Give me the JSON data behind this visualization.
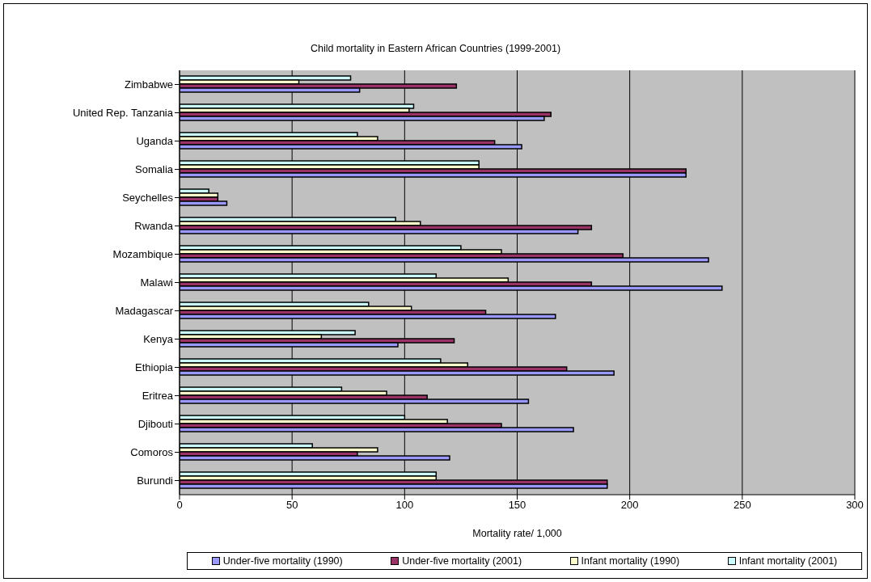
{
  "chart_data": {
    "type": "bar",
    "orientation": "horizontal",
    "title": "Child mortality in Eastern African Countries (1999-2001)",
    "xlabel": "Mortality rate/ 1,000",
    "categories": [
      "Zimbabwe",
      "United Rep. Tanzania",
      "Uganda",
      "Somalia",
      "Seychelles",
      "Rwanda",
      "Mozambique",
      "Malawi",
      "Madagascar",
      "Kenya",
      "Ethiopia",
      "Eritrea",
      "Djibouti",
      "Comoros",
      "Burundi"
    ],
    "series": [
      {
        "name": "Under-five mortality (1990)",
        "color": "#9999ff",
        "values": [
          80,
          162,
          152,
          225,
          21,
          177,
          235,
          241,
          167,
          97,
          193,
          155,
          175,
          120,
          190
        ]
      },
      {
        "name": "Under-five mortality (2001)",
        "color": "#993366",
        "values": [
          123,
          165,
          140,
          225,
          17,
          183,
          197,
          183,
          136,
          122,
          172,
          110,
          143,
          79,
          190
        ]
      },
      {
        "name": "Infant mortality (1990)",
        "color": "#ffffcc",
        "values": [
          53,
          102,
          88,
          133,
          17,
          107,
          143,
          146,
          103,
          63,
          128,
          92,
          119,
          88,
          114
        ]
      },
      {
        "name": "Infant mortality (2001)",
        "color": "#ccffff",
        "values": [
          76,
          104,
          79,
          133,
          13,
          96,
          125,
          114,
          84,
          78,
          116,
          72,
          100,
          59,
          114
        ]
      }
    ],
    "xlim": [
      0,
      300
    ],
    "xticks": [
      0,
      50,
      100,
      150,
      200,
      250,
      300
    ],
    "grid": "x",
    "legend": "bottom"
  }
}
